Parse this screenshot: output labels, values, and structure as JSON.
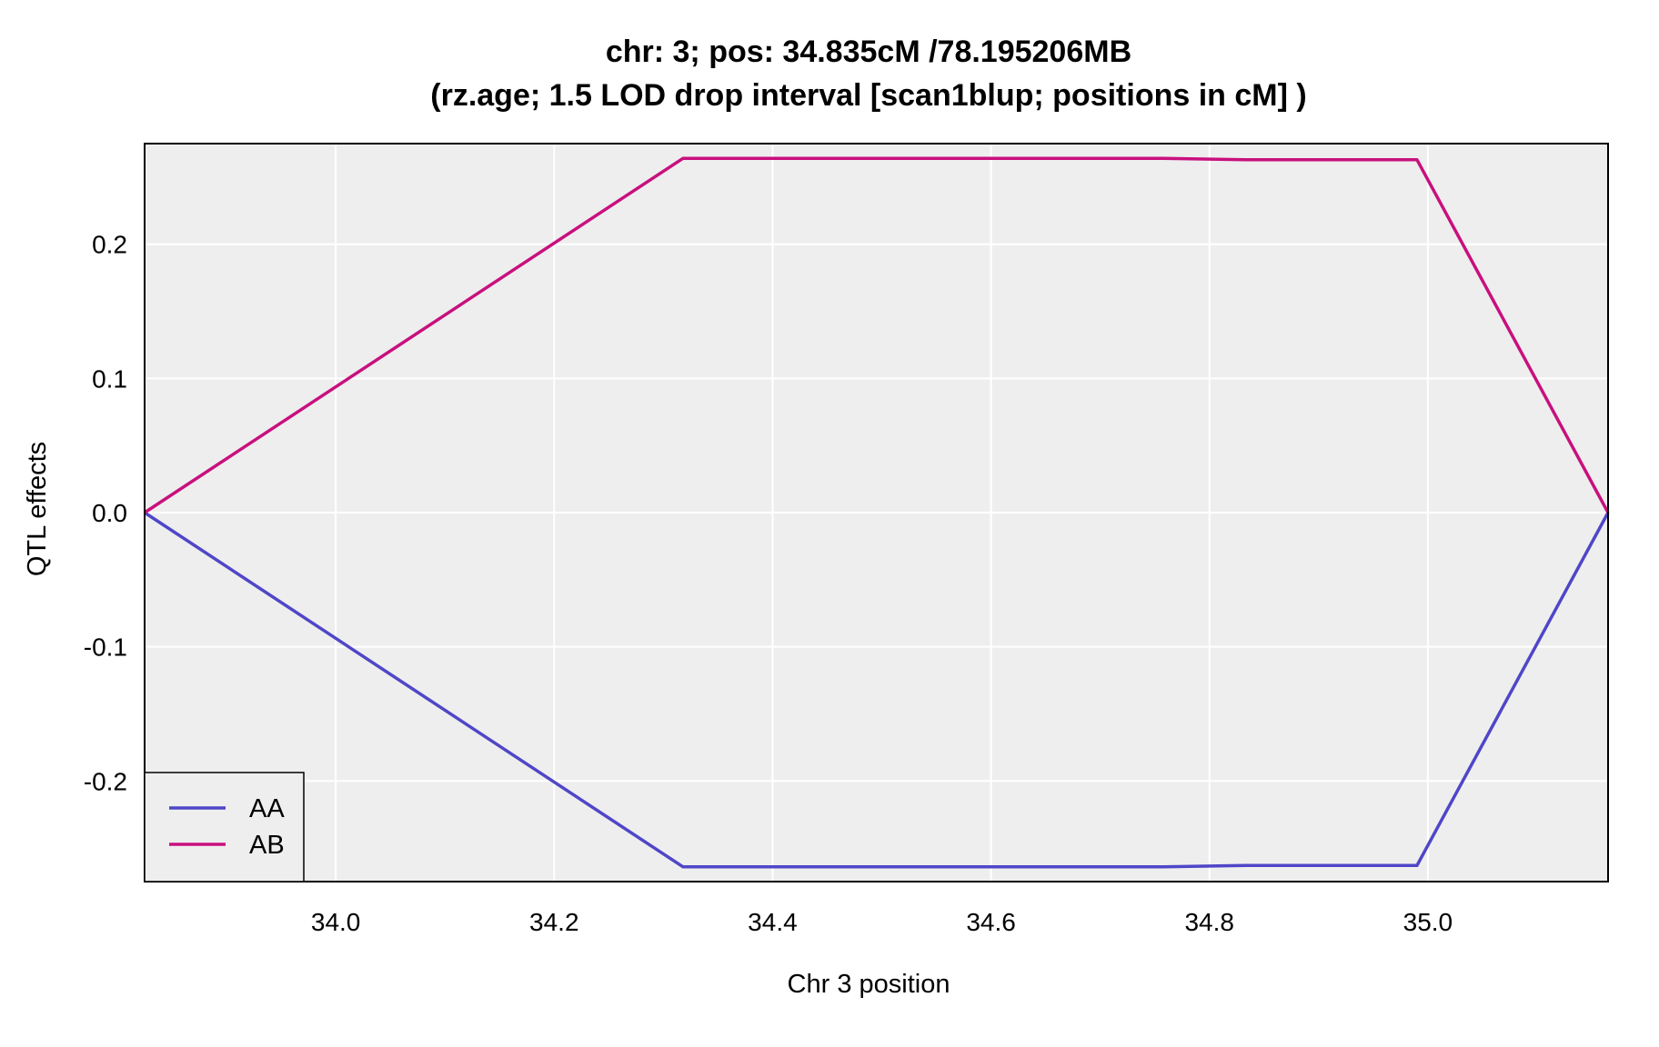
{
  "chart_data": {
    "type": "line",
    "title": "chr: 3; pos: 34.835cM /78.195206MB",
    "subtitle": "(rz.age; 1.5 LOD drop interval [scan1blup; positions in cM] )",
    "xlabel": "Chr 3 position",
    "ylabel": "QTL effects",
    "xlim": [
      33.825,
      35.165
    ],
    "ylim": [
      -0.275,
      0.275
    ],
    "xticks": [
      34.0,
      34.2,
      34.4,
      34.6,
      34.8,
      35.0
    ],
    "xtick_labels": [
      "34.0",
      "34.2",
      "34.4",
      "34.6",
      "34.8",
      "35.0"
    ],
    "yticks": [
      -0.2,
      -0.1,
      0.0,
      0.1,
      0.2
    ],
    "ytick_labels": [
      "-0.2",
      "-0.1",
      "0.0",
      "0.1",
      "0.2"
    ],
    "grid": true,
    "background": "#eeeeee",
    "grid_color": "#ffffff",
    "legend_position": "bottom-left",
    "series": [
      {
        "name": "AA",
        "color": "#4f46c8",
        "x": [
          33.825,
          34.318,
          34.758,
          34.833,
          34.99,
          35.165
        ],
        "y": [
          0.0,
          -0.264,
          -0.264,
          -0.263,
          -0.263,
          0.0
        ]
      },
      {
        "name": "AB",
        "color": "#c8107e",
        "x": [
          33.825,
          34.318,
          34.758,
          34.833,
          34.99,
          35.165
        ],
        "y": [
          0.0,
          0.264,
          0.264,
          0.263,
          0.263,
          0.0
        ]
      }
    ]
  }
}
